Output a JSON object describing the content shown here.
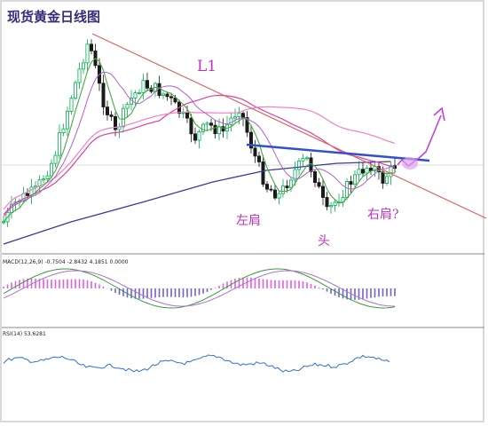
{
  "chart_data": {
    "type": "candlestick",
    "title": "现货黄金日线图",
    "annotations": {
      "trendline": "L1",
      "left_shoulder": "左肩",
      "head": "头",
      "right_shoulder": "右肩?"
    },
    "indicators": {
      "macd_label": "MACD(12,26,9) -0.7504 -2.8432 4.1851 0.0000",
      "rsi_label": "RSI(14) 53.6281"
    },
    "colors": {
      "bull": "#00b050",
      "bear": "#1a1a1a",
      "trendline": "#e06060",
      "neckline": "#3050d0",
      "ma_slow": "#3a3a9a",
      "ma_pink": "#e040a0",
      "macd_hist": "#e060e0",
      "rsi": "#3070d0",
      "arrow": "#c040e0"
    }
  }
}
